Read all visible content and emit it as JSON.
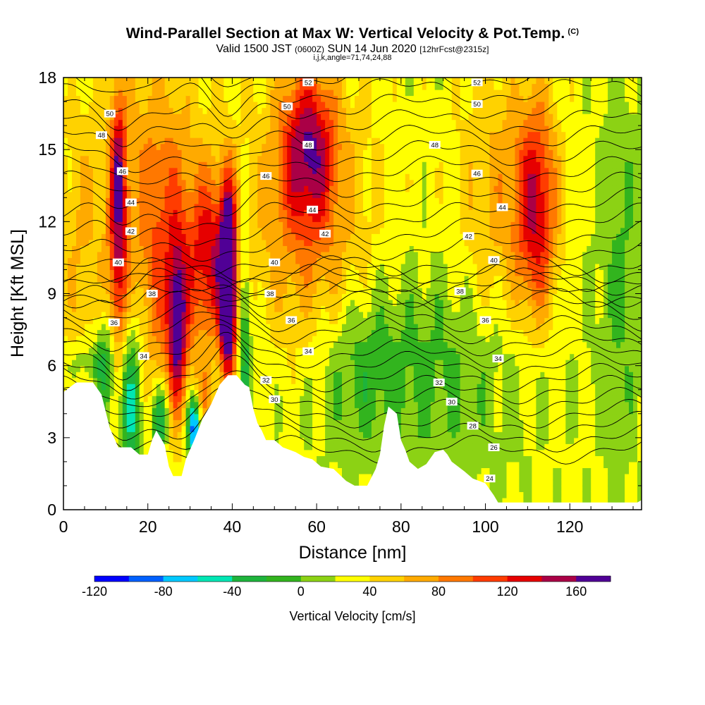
{
  "header": {
    "title": "Wind-Parallel Section at Max W: Vertical Velocity & Pot.Temp.",
    "copyright": "(C)",
    "valid_time": "Valid 1500 JST",
    "utc": "(0600Z)",
    "date": "SUN 14 Jun 2020",
    "forecast": "[12hrFcst@2315z]",
    "indices": "i,j,k,angle=71,74,24,88"
  },
  "chart_data": {
    "type": "heatmap",
    "xlabel": "Distance [nm]",
    "ylabel": "Height [Kft MSL]",
    "xlim": [
      0,
      137
    ],
    "ylim": [
      0,
      18
    ],
    "x_ticks": [
      0,
      20,
      40,
      60,
      80,
      100,
      120
    ],
    "x_tick_labels": [
      "0",
      "20",
      "40",
      "60",
      "80",
      "100",
      "120"
    ],
    "y_ticks": [
      0,
      3,
      6,
      9,
      12,
      15,
      18
    ],
    "y_tick_labels": [
      "0",
      "3",
      "6",
      "9",
      "12",
      "15",
      "18"
    ],
    "colorbar": {
      "label": "Vertical Velocity [cm/s]",
      "range": [
        -120,
        180
      ],
      "step": 20,
      "tick_values": [
        -120,
        -80,
        -40,
        0,
        40,
        80,
        120,
        160
      ],
      "tick_labels": [
        "-120",
        "-80",
        "-40",
        "0",
        "40",
        "80",
        "120",
        "160"
      ],
      "colors": [
        "#0000ff",
        "#0060ff",
        "#00c8ff",
        "#00e6b4",
        "#1eb43c",
        "#32b41e",
        "#8cd214",
        "#ffff00",
        "#ffd200",
        "#ffaa00",
        "#ff7800",
        "#ff3c00",
        "#e60000",
        "#aa0046",
        "#500096"
      ]
    },
    "terrain_kft": [
      [
        0,
        4.9
      ],
      [
        3,
        5.3
      ],
      [
        7,
        5.3
      ],
      [
        9,
        4.8
      ],
      [
        11,
        3.4
      ],
      [
        13,
        2.6
      ],
      [
        14,
        2.6
      ],
      [
        16,
        2.6
      ],
      [
        18,
        2.3
      ],
      [
        20,
        2.3
      ],
      [
        21,
        2.9
      ],
      [
        22,
        3.3
      ],
      [
        24,
        2.7
      ],
      [
        25,
        1.8
      ],
      [
        26,
        1.4
      ],
      [
        28,
        1.4
      ],
      [
        29,
        2.1
      ],
      [
        31,
        2.9
      ],
      [
        33,
        3.8
      ],
      [
        35,
        4.4
      ],
      [
        37,
        5.2
      ],
      [
        39,
        5.6
      ],
      [
        41,
        5.6
      ],
      [
        42,
        5.4
      ],
      [
        43,
        5.2
      ],
      [
        44,
        5.1
      ],
      [
        45,
        4.2
      ],
      [
        46,
        3.6
      ],
      [
        47,
        3.3
      ],
      [
        48,
        2.9
      ],
      [
        50,
        2.9
      ],
      [
        52,
        2.6
      ],
      [
        55,
        2.4
      ],
      [
        57,
        2.2
      ],
      [
        59,
        2.1
      ],
      [
        61,
        1.8
      ],
      [
        64,
        1.7
      ],
      [
        67,
        1.2
      ],
      [
        69,
        1.0
      ],
      [
        72,
        1.0
      ],
      [
        74,
        1.7
      ],
      [
        75,
        2.3
      ],
      [
        76,
        3.5
      ],
      [
        77,
        4.3
      ],
      [
        79,
        4.0
      ],
      [
        80,
        2.9
      ],
      [
        81,
        2.5
      ],
      [
        82,
        2.0
      ],
      [
        84,
        1.7
      ],
      [
        86,
        1.9
      ],
      [
        88,
        2.4
      ],
      [
        90,
        2.5
      ],
      [
        91,
        2.3
      ],
      [
        92,
        2.0
      ],
      [
        95,
        1.6
      ],
      [
        97,
        1.3
      ],
      [
        100,
        1.1
      ],
      [
        102,
        0.6
      ],
      [
        103,
        0.3
      ],
      [
        106,
        0.3
      ],
      [
        110,
        0.3
      ],
      [
        114,
        0.3
      ],
      [
        118,
        0.3
      ],
      [
        124,
        0.3
      ],
      [
        128,
        0.3
      ],
      [
        132,
        0.3
      ],
      [
        136,
        0.3
      ],
      [
        137,
        0.4
      ]
    ],
    "velocity_features": [
      {
        "x": 39,
        "y": 9.5,
        "sx": 1.3,
        "sy": 2.8,
        "w": 190
      },
      {
        "x": 39,
        "y": 7.5,
        "sx": 1.0,
        "sy": 0.8,
        "w": 60
      },
      {
        "x": 35,
        "y": 10.5,
        "sx": 3.5,
        "sy": 2.5,
        "w": 95
      },
      {
        "x": 27,
        "y": 7.5,
        "sx": 1.5,
        "sy": 2.3,
        "w": 110
      },
      {
        "x": 25,
        "y": 9.5,
        "sx": 5.0,
        "sy": 4.0,
        "w": 60
      },
      {
        "x": 13,
        "y": 10.5,
        "sx": 1.6,
        "sy": 3.3,
        "w": 95
      },
      {
        "x": 13,
        "y": 15.0,
        "sx": 1.2,
        "sy": 2.0,
        "w": 60
      },
      {
        "x": 58,
        "y": 15.2,
        "sx": 4.5,
        "sy": 2.3,
        "w": 100
      },
      {
        "x": 58,
        "y": 12.0,
        "sx": 10.0,
        "sy": 4.0,
        "w": 55
      },
      {
        "x": 112,
        "y": 12.5,
        "sx": 3.5,
        "sy": 3.2,
        "w": 110
      },
      {
        "x": 102,
        "y": 13.0,
        "sx": 6.0,
        "sy": 4.0,
        "w": 40
      },
      {
        "x": 20,
        "y": 14.0,
        "sx": 8.0,
        "sy": 4.0,
        "w": 40
      },
      {
        "x": 4,
        "y": 11.0,
        "sx": 4.0,
        "sy": 4.0,
        "w": 30
      },
      {
        "x": 33,
        "y": 4.5,
        "sx": 2.0,
        "sy": 1.0,
        "w": 50
      },
      {
        "x": 16,
        "y": 4.5,
        "sx": 1.8,
        "sy": 2.5,
        "w": -80
      },
      {
        "x": 10,
        "y": 6.0,
        "sx": 1.8,
        "sy": 1.5,
        "w": -60
      },
      {
        "x": 31,
        "y": 3.5,
        "sx": 1.2,
        "sy": 1.0,
        "w": -140
      },
      {
        "x": 23,
        "y": 3.8,
        "sx": 1.5,
        "sy": 1.0,
        "w": -80
      },
      {
        "x": 43,
        "y": 7.0,
        "sx": 1.0,
        "sy": 3.0,
        "w": -60
      },
      {
        "x": 90,
        "y": 6.0,
        "sx": 15.0,
        "sy": 3.0,
        "w": -20
      },
      {
        "x": 132,
        "y": 10.0,
        "sx": 4.0,
        "sy": 6.0,
        "w": -30
      },
      {
        "x": 70,
        "y": 6.0,
        "sx": 6.0,
        "sy": 2.0,
        "w": -25
      },
      {
        "x": 5,
        "y": 6.2,
        "sx": 3.0,
        "sy": 0.6,
        "w": -30
      }
    ],
    "theta_contour_labels": [
      {
        "label": "52",
        "x": 58,
        "y": 17.8
      },
      {
        "label": "52",
        "x": 98,
        "y": 17.8
      },
      {
        "label": "50",
        "x": 11,
        "y": 16.5
      },
      {
        "label": "50",
        "x": 53,
        "y": 16.8
      },
      {
        "label": "50",
        "x": 98,
        "y": 16.9
      },
      {
        "label": "48",
        "x": 9,
        "y": 15.6
      },
      {
        "label": "48",
        "x": 58,
        "y": 15.2
      },
      {
        "label": "48",
        "x": 88,
        "y": 15.2
      },
      {
        "label": "46",
        "x": 14,
        "y": 14.1
      },
      {
        "label": "46",
        "x": 48,
        "y": 13.9
      },
      {
        "label": "46",
        "x": 98,
        "y": 14.0
      },
      {
        "label": "44",
        "x": 16,
        "y": 12.8
      },
      {
        "label": "44",
        "x": 59,
        "y": 12.5
      },
      {
        "label": "44",
        "x": 104,
        "y": 12.6
      },
      {
        "label": "42",
        "x": 16,
        "y": 11.6
      },
      {
        "label": "42",
        "x": 62,
        "y": 11.5
      },
      {
        "label": "42",
        "x": 96,
        "y": 11.4
      },
      {
        "label": "40",
        "x": 13,
        "y": 10.3
      },
      {
        "label": "40",
        "x": 50,
        "y": 10.3
      },
      {
        "label": "40",
        "x": 102,
        "y": 10.4
      },
      {
        "label": "38",
        "x": 21,
        "y": 9.0
      },
      {
        "label": "38",
        "x": 49,
        "y": 9.0
      },
      {
        "label": "38",
        "x": 94,
        "y": 9.1
      },
      {
        "label": "36",
        "x": 12,
        "y": 7.8
      },
      {
        "label": "36",
        "x": 54,
        "y": 7.9
      },
      {
        "label": "36",
        "x": 100,
        "y": 7.9
      },
      {
        "label": "34",
        "x": 19,
        "y": 6.4
      },
      {
        "label": "34",
        "x": 58,
        "y": 6.6
      },
      {
        "label": "34",
        "x": 103,
        "y": 6.3
      },
      {
        "label": "32",
        "x": 48,
        "y": 5.4
      },
      {
        "label": "32",
        "x": 89,
        "y": 5.3
      },
      {
        "label": "30",
        "x": 50,
        "y": 4.6
      },
      {
        "label": "30",
        "x": 92,
        "y": 4.5
      },
      {
        "label": "28",
        "x": 97,
        "y": 3.5
      },
      {
        "label": "26",
        "x": 102,
        "y": 2.6
      },
      {
        "label": "24",
        "x": 101,
        "y": 1.3
      }
    ]
  }
}
